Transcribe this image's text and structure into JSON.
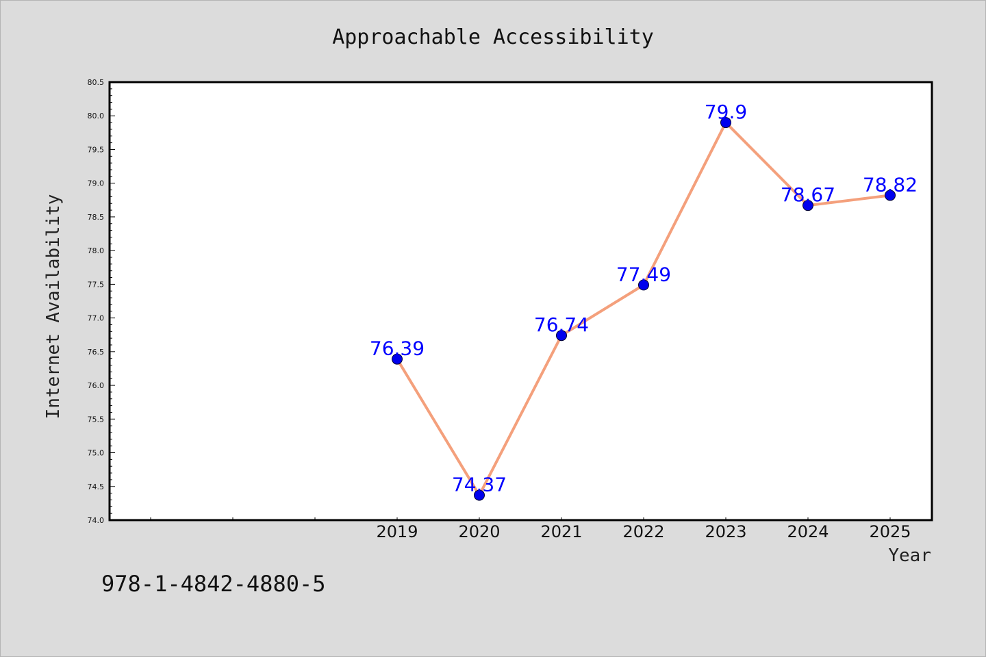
{
  "chart_data": {
    "type": "line",
    "title": "Approachable Accessibility",
    "xlabel": "Year",
    "ylabel": "Internet Availability",
    "x": [
      "2019",
      "2020",
      "2021",
      "2022",
      "2023",
      "2024",
      "2025"
    ],
    "series": [
      {
        "values": [
          76.39,
          74.37,
          76.74,
          77.49,
          79.9,
          78.67,
          78.82
        ]
      }
    ],
    "data_labels": [
      "76.39",
      "74.37",
      "76.74",
      "77.49",
      "79.9",
      "78.67",
      "78.82"
    ],
    "ylim": [
      74.0,
      80.5
    ],
    "yticks": [
      "74.0",
      "74.5",
      "75.0",
      "75.5",
      "76.0",
      "76.5",
      "77.0",
      "77.5",
      "78.0",
      "78.5",
      "79.0",
      "79.5",
      "80.0",
      "80.5"
    ],
    "grid": false,
    "legend": "none",
    "colors": {
      "line": "#f4a07c",
      "marker": "#0000ee",
      "label": "#0000ff",
      "background": "#dcdcdc",
      "plot_background": "#ffffff"
    }
  },
  "footer": {
    "isbn": "978-1-4842-4880-5"
  }
}
